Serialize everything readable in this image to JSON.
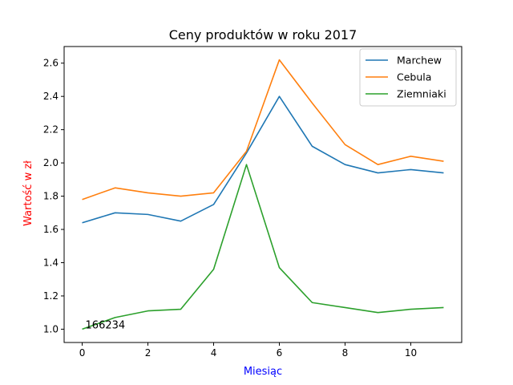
{
  "chart_data": {
    "type": "line",
    "title": "Ceny produktów w roku 2017",
    "xlabel": "Miesiąc",
    "ylabel": "Wartość w zł",
    "xlabel_color": "#0000ff",
    "ylabel_color": "#ff0000",
    "x": [
      0,
      1,
      2,
      3,
      4,
      5,
      6,
      7,
      8,
      9,
      10,
      11
    ],
    "xlim": [
      -0.55,
      11.55
    ],
    "ylim": [
      0.92,
      2.7
    ],
    "xticks": [
      0,
      2,
      4,
      6,
      8,
      10
    ],
    "xtick_labels": [
      "0",
      "2",
      "4",
      "6",
      "8",
      "10"
    ],
    "yticks": [
      1.0,
      1.2,
      1.4,
      1.6,
      1.8,
      2.0,
      2.2,
      2.4,
      2.6
    ],
    "ytick_labels": [
      "1.0",
      "1.2",
      "1.4",
      "1.6",
      "1.8",
      "2.0",
      "2.2",
      "2.4",
      "2.6"
    ],
    "grid": false,
    "legend_position": "top-right",
    "series": [
      {
        "name": "Marchew",
        "color": "#1f77b4",
        "values": [
          1.64,
          1.7,
          1.69,
          1.65,
          1.75,
          2.06,
          2.4,
          2.1,
          1.99,
          1.94,
          1.96,
          1.94
        ]
      },
      {
        "name": "Cebula",
        "color": "#ff7f0e",
        "values": [
          1.78,
          1.85,
          1.82,
          1.8,
          1.82,
          2.07,
          2.62,
          2.36,
          2.11,
          1.99,
          2.04,
          2.01
        ]
      },
      {
        "name": "Ziemniaki",
        "color": "#2ca02c",
        "values": [
          1.0,
          1.07,
          1.11,
          1.12,
          1.36,
          1.99,
          1.37,
          1.16,
          1.13,
          1.1,
          1.12,
          1.13
        ]
      }
    ],
    "annotations": [
      {
        "text": "166234",
        "x": 0,
        "y": 1.0
      }
    ]
  }
}
